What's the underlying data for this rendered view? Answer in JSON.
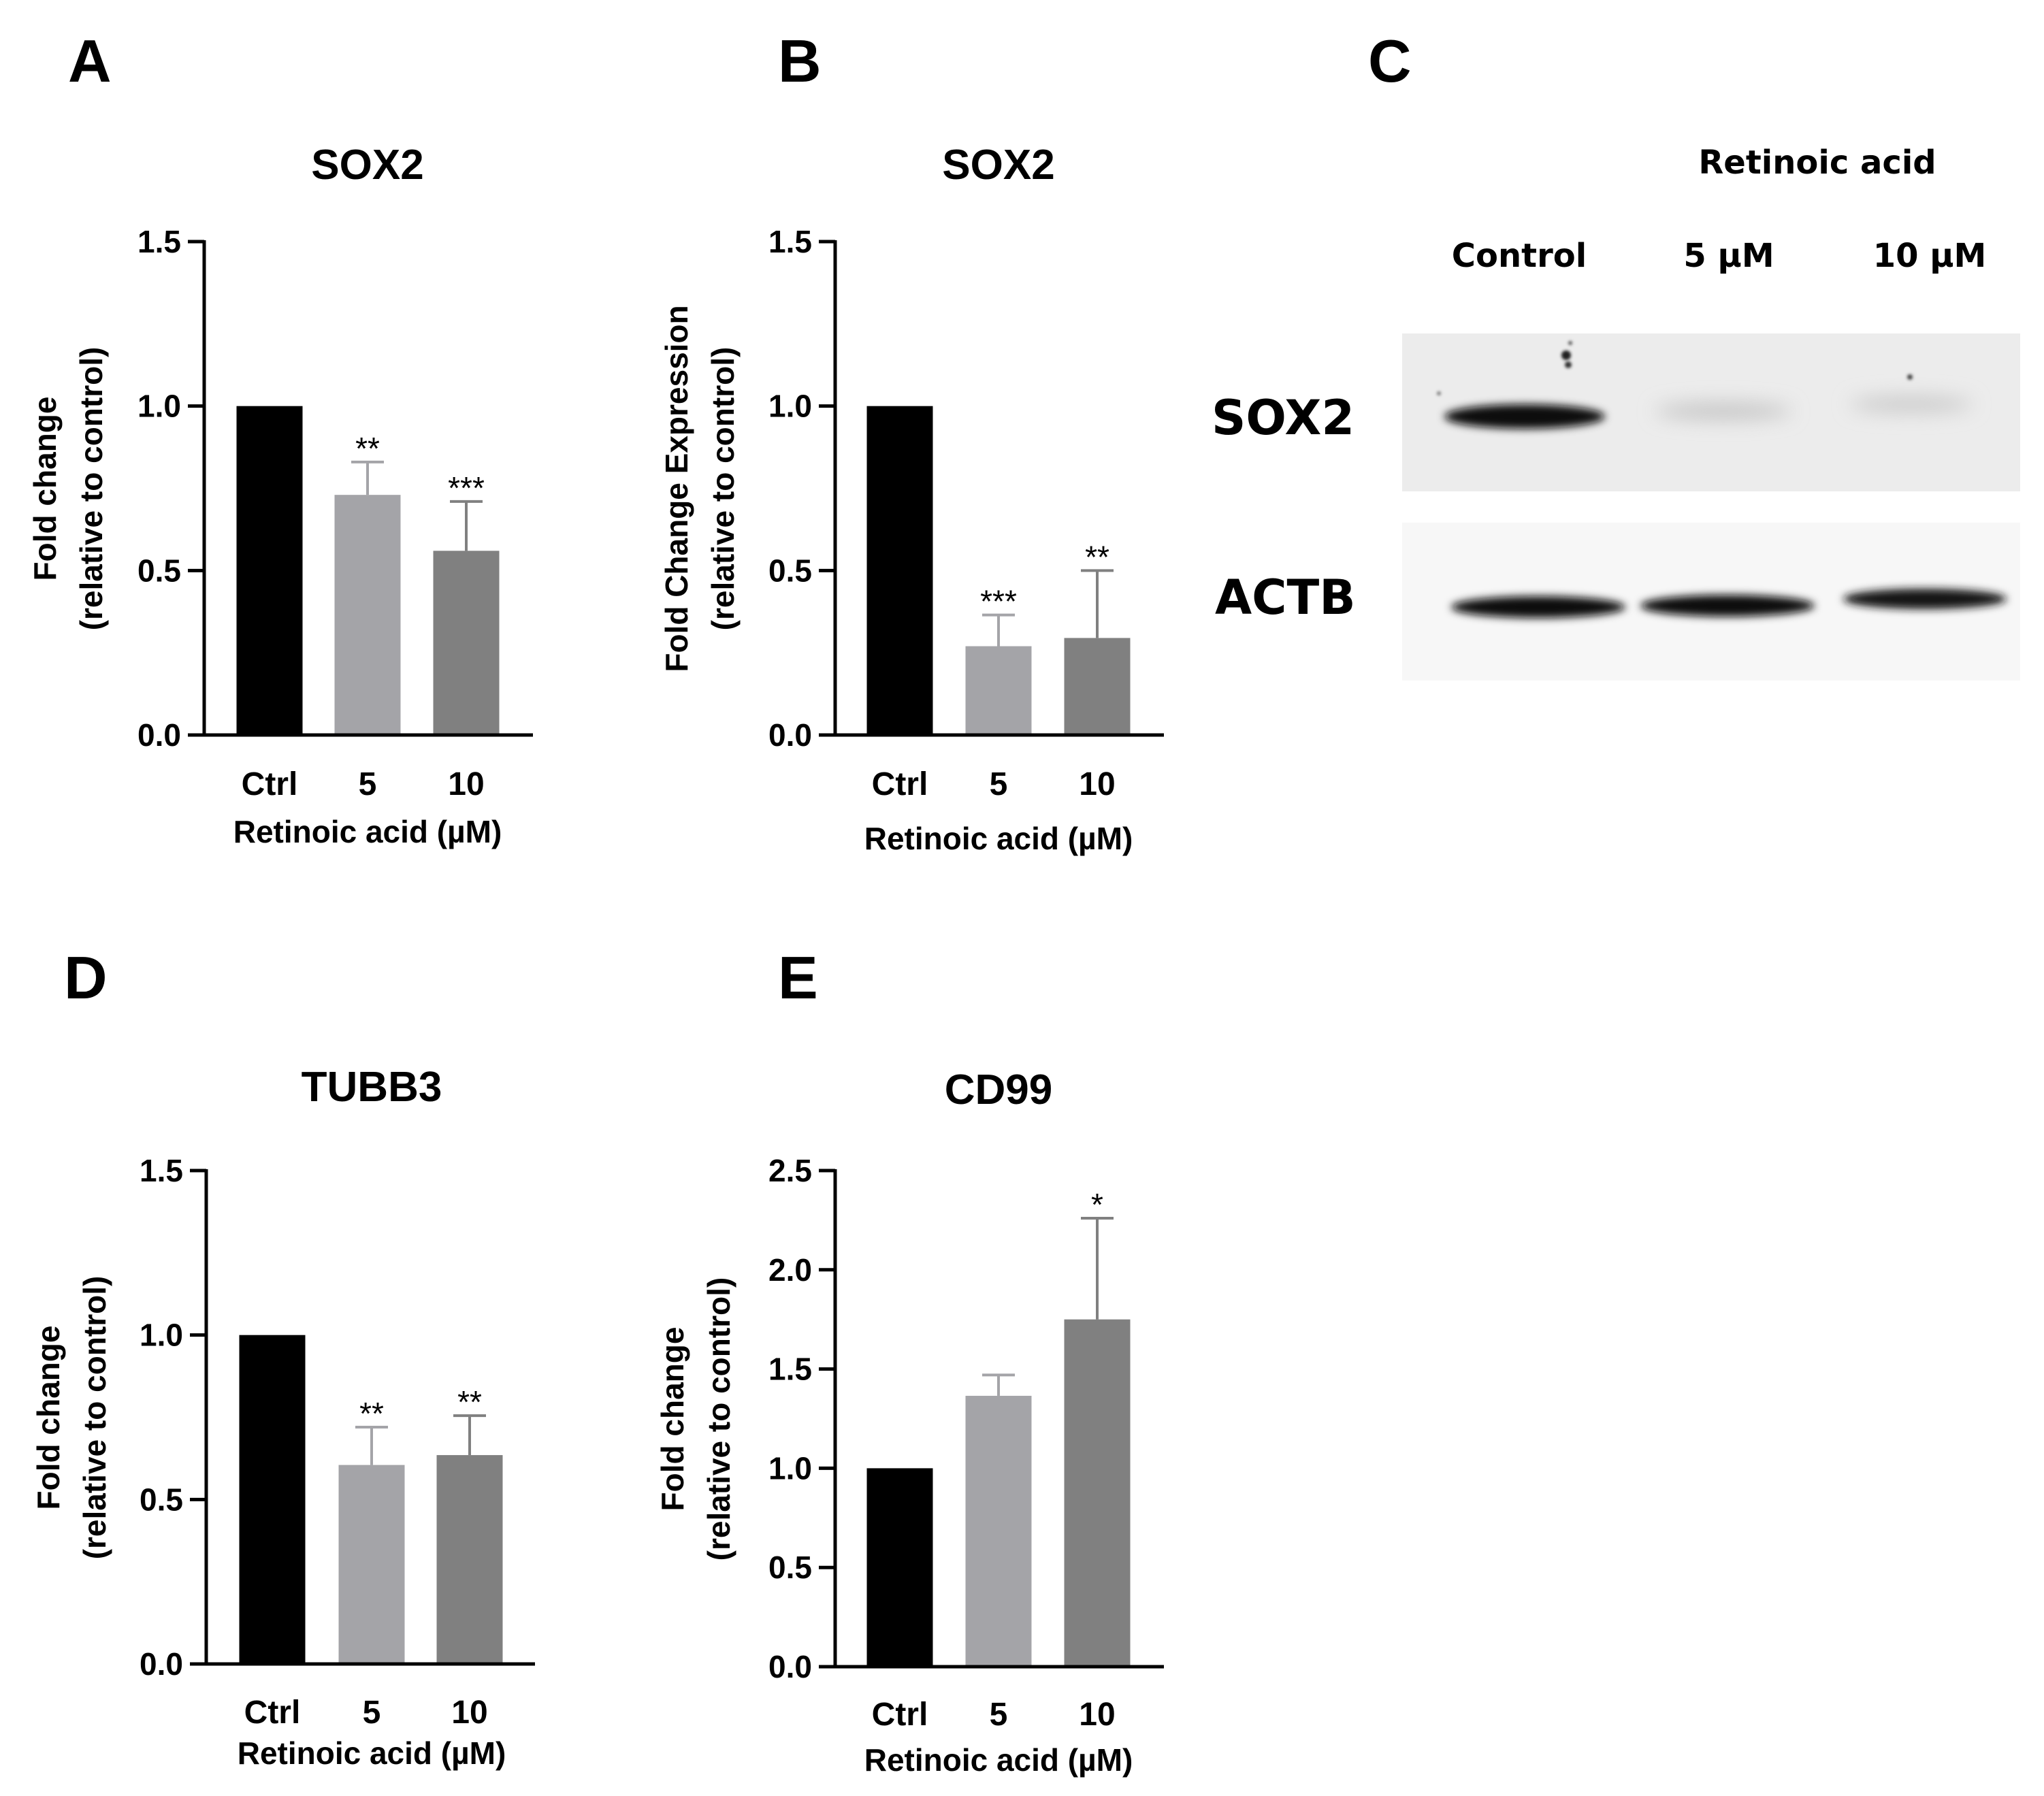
{
  "panels": {
    "a": "A",
    "b": "B",
    "c": "C",
    "d": "D",
    "e": "E"
  },
  "chart_data": [
    {
      "id": "a",
      "type": "bar",
      "title": "SOX2",
      "ylabel_line1": "Fold change",
      "ylabel_line2": "(relative to control)",
      "xlabel": "Retinoic acid (µM)",
      "categories": [
        "Ctrl",
        "5",
        "10"
      ],
      "values": [
        1.0,
        0.73,
        0.56
      ],
      "errors": [
        0,
        0.1,
        0.15
      ],
      "significance": [
        "",
        "**",
        "***"
      ],
      "colors": [
        "#000000",
        "#a4a4a8",
        "#808080"
      ],
      "ylim": [
        0,
        1.5
      ],
      "yticks": [
        0,
        0.5,
        1.0,
        1.5
      ],
      "yticklabels": [
        "0.0",
        "0.5",
        "1.0",
        "1.5"
      ],
      "grid": false
    },
    {
      "id": "b",
      "type": "bar",
      "title": "SOX2",
      "ylabel_line1": "Fold Change Expression",
      "ylabel_line2": "(relative to control)",
      "xlabel": "Retinoic acid (µM)",
      "categories": [
        "Ctrl",
        "5",
        "10"
      ],
      "values": [
        1.0,
        0.27,
        0.295
      ],
      "errors": [
        0,
        0.095,
        0.205
      ],
      "significance": [
        "",
        "***",
        "**"
      ],
      "colors": [
        "#000000",
        "#a4a4a8",
        "#808080"
      ],
      "ylim": [
        0,
        1.5
      ],
      "yticks": [
        0,
        0.5,
        1.0,
        1.5
      ],
      "yticklabels": [
        "0.0",
        "0.5",
        "1.0",
        "1.5"
      ],
      "grid": false
    },
    {
      "id": "d",
      "type": "bar",
      "title": "TUBB3",
      "ylabel_line1": "Fold change",
      "ylabel_line2": "(relative to control)",
      "xlabel": "Retinoic acid (µM)",
      "categories": [
        "Ctrl",
        "5",
        "10"
      ],
      "values": [
        1.0,
        0.605,
        0.635
      ],
      "errors": [
        0,
        0.115,
        0.12
      ],
      "significance": [
        "",
        "**",
        "**"
      ],
      "colors": [
        "#000000",
        "#a4a4a8",
        "#808080"
      ],
      "ylim": [
        0,
        1.5
      ],
      "yticks": [
        0,
        0.5,
        1.0,
        1.5
      ],
      "yticklabels": [
        "0.0",
        "0.5",
        "1.0",
        "1.5"
      ],
      "grid": false
    },
    {
      "id": "e",
      "type": "bar",
      "title": "CD99",
      "ylabel_line1": "Fold change",
      "ylabel_line2": "(relative to control)",
      "xlabel": "Retinoic acid (µM)",
      "categories": [
        "Ctrl",
        "5",
        "10"
      ],
      "values": [
        1.0,
        1.365,
        1.75
      ],
      "errors": [
        0,
        0.105,
        0.51
      ],
      "significance": [
        "",
        "",
        "*"
      ],
      "colors": [
        "#000000",
        "#a4a4a8",
        "#808080"
      ],
      "ylim": [
        0,
        2.5
      ],
      "yticks": [
        0,
        0.5,
        1.0,
        1.5,
        2.0,
        2.5
      ],
      "yticklabels": [
        "0.0",
        "0.5",
        "1.0",
        "1.5",
        "2.0",
        "2.5"
      ],
      "grid": false
    }
  ],
  "blot": {
    "header": "Retinoic acid",
    "lanes": [
      "Control",
      "5 µM",
      "10 µM"
    ],
    "rows": [
      "SOX2",
      "ACTB"
    ],
    "sox2_band_intensity": [
      1.0,
      0.15,
      0.12
    ],
    "actb_band_intensity": [
      1.0,
      1.0,
      0.9
    ]
  }
}
